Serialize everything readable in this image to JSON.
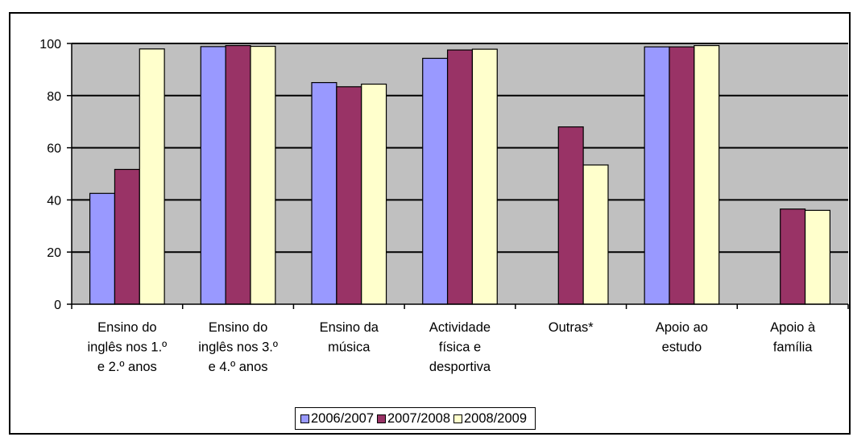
{
  "chart_data": {
    "type": "bar",
    "categories": [
      [
        "Ensino do",
        "inglês nos 1.º",
        "e 2.º anos"
      ],
      [
        "Ensino do",
        "inglês nos 3.º",
        "e 4.º anos"
      ],
      [
        "Ensino da",
        "música"
      ],
      [
        "Actividade",
        "física e",
        "desportiva"
      ],
      [
        "Outras*"
      ],
      [
        "Apoio ao",
        "estudo"
      ],
      [
        "Apoio à",
        "família"
      ]
    ],
    "series": [
      {
        "name": "2006/2007",
        "color": "#9999ff",
        "values": [
          42.5,
          98.8,
          85,
          94.3,
          null,
          98.7,
          null
        ]
      },
      {
        "name": "2007/2008",
        "color": "#993366",
        "values": [
          51.7,
          99.2,
          83.4,
          97.5,
          68,
          98.7,
          36.5
        ]
      },
      {
        "name": "2008/2009",
        "color": "#ffffcc",
        "values": [
          97.9,
          98.9,
          84.4,
          97.8,
          53.4,
          99.2,
          36
        ]
      }
    ],
    "ylim": [
      0,
      100
    ],
    "yticks": [
      "0",
      "20",
      "40",
      "60",
      "80",
      "100"
    ],
    "grid": true,
    "plot_background": "#c0c0c0",
    "legend_position": "bottom"
  }
}
